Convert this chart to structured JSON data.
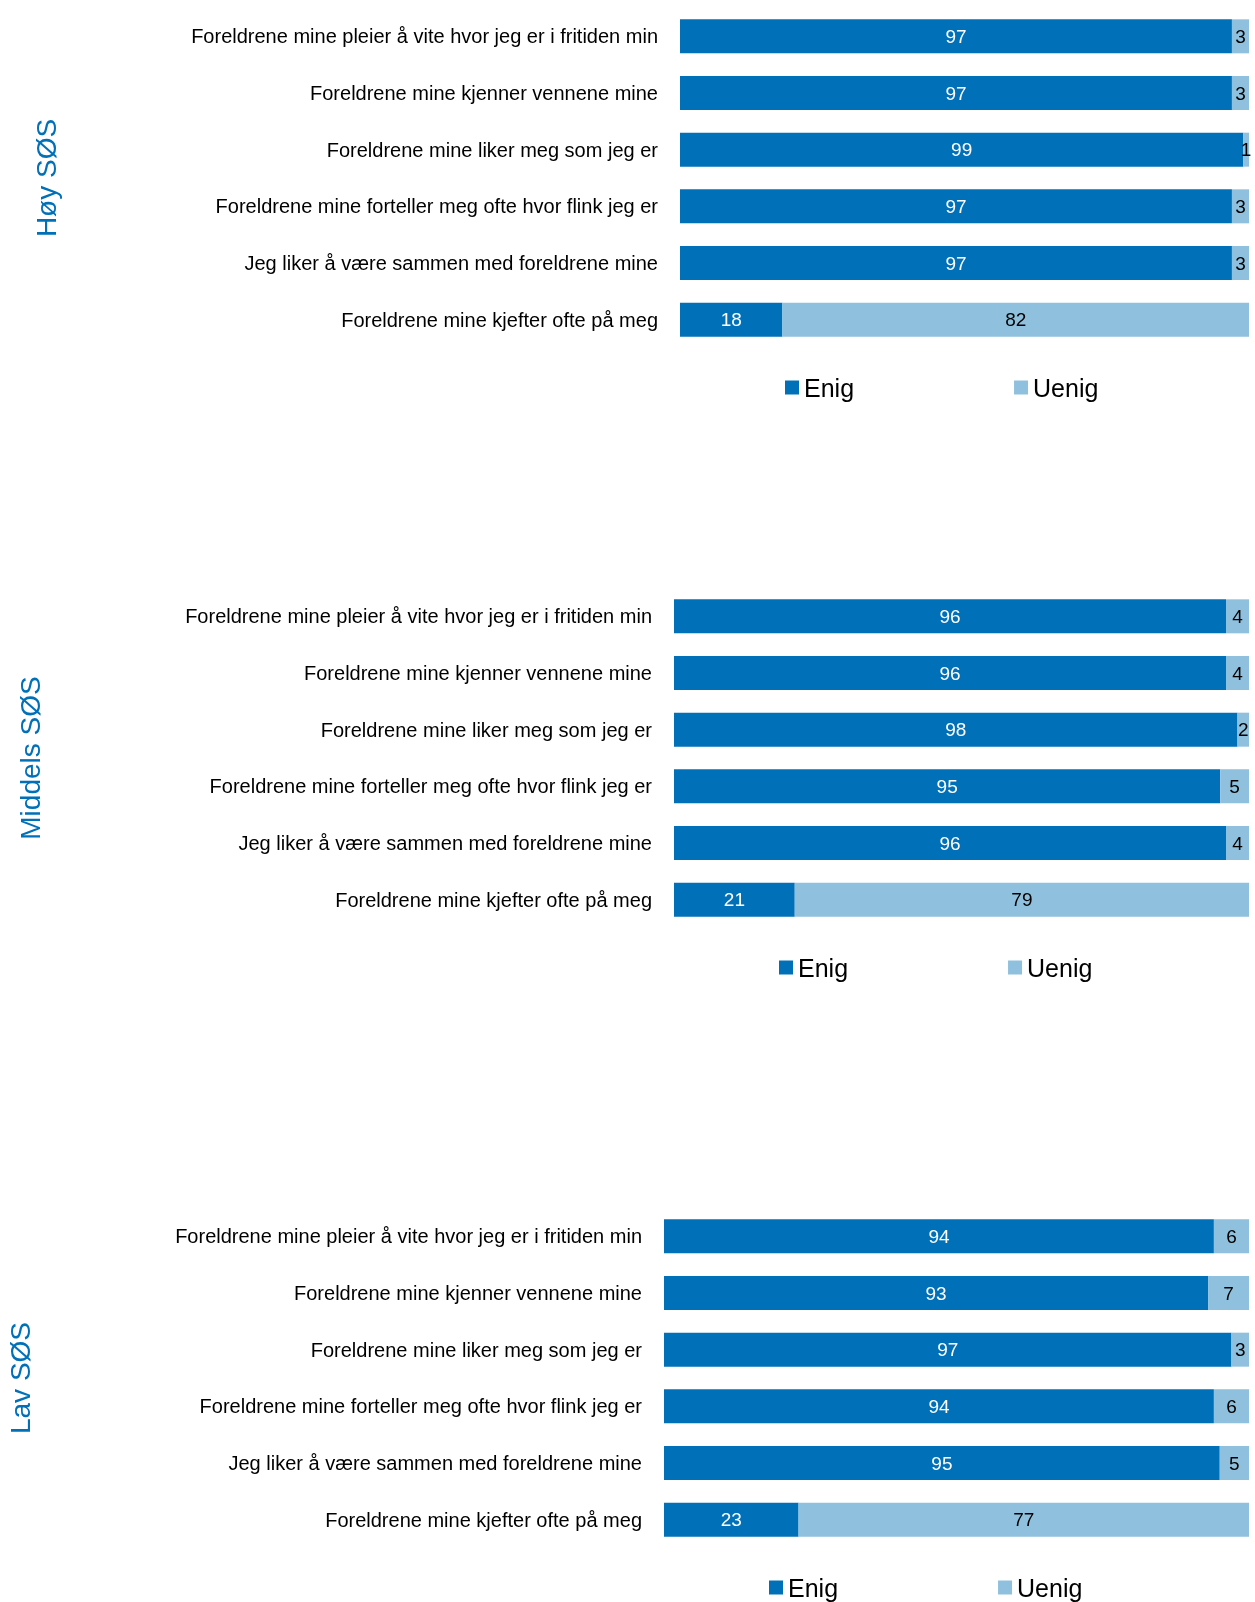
{
  "chart_data": [
    {
      "type": "bar",
      "orientation": "horizontal",
      "stacked": true,
      "data_labels": true,
      "legend": "bottom",
      "tick_labels": "y",
      "ylabel": "Høy SØS",
      "categories": [
        "Foreldrene mine pleier å vite hvor jeg er i fritiden min",
        "Foreldrene mine kjenner vennene mine",
        "Foreldrene mine liker meg som jeg er",
        "Foreldrene mine forteller meg ofte hvor flink jeg er",
        "Jeg liker å være sammen med foreldrene mine",
        "Foreldrene mine kjefter ofte på meg"
      ],
      "series": [
        {
          "name": "Enig",
          "color": "#0070b8",
          "values": [
            97,
            97,
            99,
            97,
            97,
            18
          ]
        },
        {
          "name": "Uenig",
          "color": "#8fc1de",
          "values": [
            3,
            3,
            1,
            3,
            3,
            82
          ]
        }
      ]
    },
    {
      "type": "bar",
      "orientation": "horizontal",
      "stacked": true,
      "data_labels": true,
      "legend": "bottom",
      "tick_labels": "y",
      "ylabel": "Middels SØS",
      "categories": [
        "Foreldrene mine pleier å vite hvor jeg er i fritiden min",
        "Foreldrene mine kjenner vennene mine",
        "Foreldrene mine liker meg som jeg er",
        "Foreldrene mine forteller meg ofte hvor flink jeg er",
        "Jeg liker å være sammen med foreldrene mine",
        "Foreldrene mine kjefter ofte på meg"
      ],
      "series": [
        {
          "name": "Enig",
          "color": "#0070b8",
          "values": [
            96,
            96,
            98,
            95,
            96,
            21
          ]
        },
        {
          "name": "Uenig",
          "color": "#8fc1de",
          "values": [
            4,
            4,
            2,
            5,
            4,
            79
          ]
        }
      ]
    },
    {
      "type": "bar",
      "orientation": "horizontal",
      "stacked": true,
      "data_labels": true,
      "legend": "bottom",
      "tick_labels": "y",
      "ylabel": "Lav SØS",
      "categories": [
        "Foreldrene mine pleier å vite hvor jeg er i fritiden min",
        "Foreldrene mine kjenner vennene mine",
        "Foreldrene mine liker meg som jeg er",
        "Foreldrene mine forteller meg ofte hvor flink jeg er",
        "Jeg liker å være sammen med foreldrene mine",
        "Foreldrene mine kjefter ofte på meg"
      ],
      "series": [
        {
          "name": "Enig",
          "color": "#0070b8",
          "values": [
            94,
            93,
            97,
            94,
            95,
            23
          ]
        },
        {
          "name": "Uenig",
          "color": "#8fc1de",
          "values": [
            6,
            7,
            3,
            6,
            5,
            77
          ]
        }
      ]
    }
  ]
}
